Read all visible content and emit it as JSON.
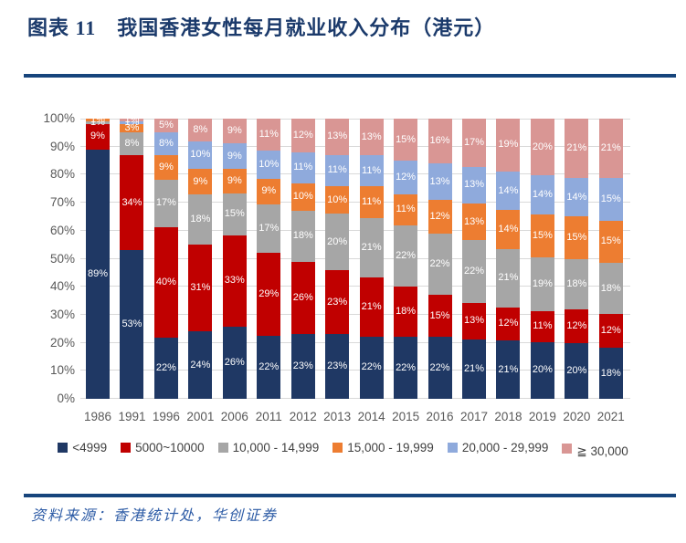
{
  "title": "图表 11　我国香港女性每月就业收入分布（港元）",
  "source": "资料来源：香港统计处，华创证券",
  "chart_data": {
    "type": "bar",
    "variant": "stacked-100-percent",
    "title": "我国香港女性每月就业收入分布（港元）",
    "categories": [
      "1986",
      "1991",
      "1996",
      "2001",
      "2006",
      "2011",
      "2012",
      "2013",
      "2014",
      "2015",
      "2016",
      "2017",
      "2018",
      "2019",
      "2020",
      "2021"
    ],
    "unit": "%",
    "series": [
      {
        "name": "<4999",
        "color": "#1F3864",
        "values": [
          89,
          53,
          22,
          24,
          26,
          22,
          23,
          23,
          22,
          22,
          22,
          21,
          21,
          20,
          20,
          18
        ]
      },
      {
        "name": "5000~10000",
        "color": "#C00000",
        "values": [
          9,
          34,
          40,
          31,
          33,
          29,
          26,
          23,
          21,
          18,
          15,
          13,
          12,
          11,
          12,
          12
        ]
      },
      {
        "name": "10,000 - 14,999",
        "color": "#A6A6A6",
        "values": [
          1,
          8,
          17,
          18,
          15,
          17,
          18,
          20,
          21,
          22,
          22,
          22,
          21,
          19,
          18,
          18
        ]
      },
      {
        "name": "15,000 - 19,999",
        "color": "#ED7D31",
        "values": [
          1,
          3,
          9,
          9,
          9,
          9,
          10,
          10,
          11,
          11,
          12,
          13,
          14,
          15,
          15,
          15
        ]
      },
      {
        "name": "20,000 - 29,999",
        "color": "#8FAADC",
        "values": [
          0,
          1,
          8,
          10,
          9,
          10,
          11,
          11,
          11,
          12,
          13,
          13,
          14,
          14,
          14,
          15
        ]
      },
      {
        "name": "≧ 30,000",
        "color": "#D99694",
        "values": [
          0,
          1,
          5,
          8,
          9,
          11,
          12,
          13,
          13,
          15,
          16,
          17,
          19,
          20,
          21,
          21
        ]
      }
    ],
    "y_ticks": [
      "0%",
      "10%",
      "20%",
      "30%",
      "40%",
      "50%",
      "60%",
      "70%",
      "80%",
      "90%",
      "100%"
    ],
    "ylim": [
      0,
      100
    ],
    "grid": true,
    "data_labels": true,
    "legend_position": "bottom"
  }
}
